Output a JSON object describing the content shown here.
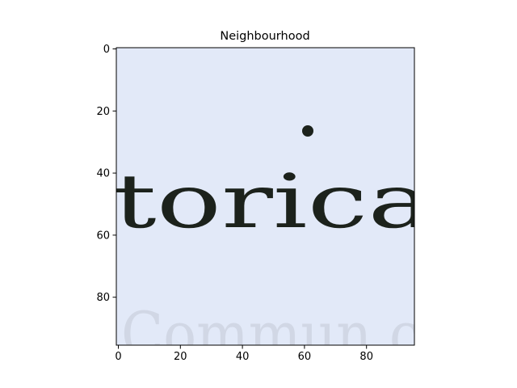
{
  "figure": {
    "title": "Neighbourhood",
    "image": {
      "subject": "scanned-paper-text-crop",
      "visible_text": "torica",
      "background_color": "#e3ebfa",
      "ink_color": "#1c221c"
    },
    "x_axis": {
      "ticks": [
        "0",
        "20",
        "40",
        "60",
        "80"
      ]
    },
    "y_axis": {
      "ticks": [
        "0",
        "20",
        "40",
        "60",
        "80"
      ]
    }
  }
}
